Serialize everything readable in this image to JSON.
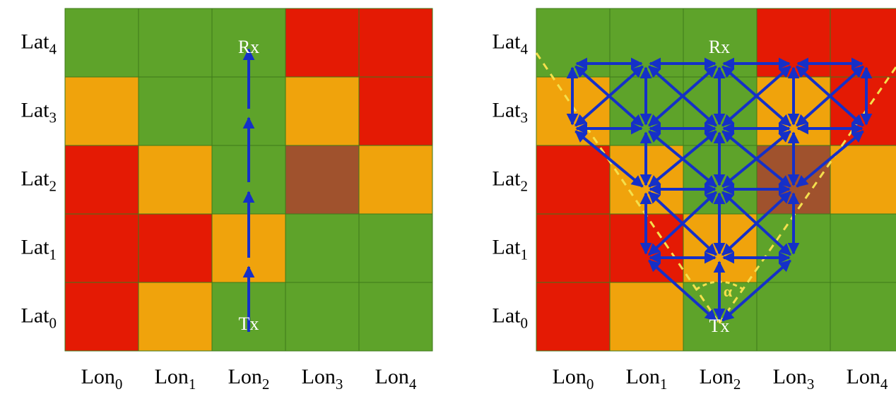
{
  "colors": {
    "G": "#5ea32a",
    "Y": "#f0a30c",
    "R": "#e41a04",
    "B": "#a0522d",
    "arrow": "#1530c8",
    "cone": "#f4e04d",
    "grid_line": "#3d7a1a"
  },
  "rows": [
    {
      "base": "Lat",
      "sub": "4"
    },
    {
      "base": "Lat",
      "sub": "3"
    },
    {
      "base": "Lat",
      "sub": "2"
    },
    {
      "base": "Lat",
      "sub": "1"
    },
    {
      "base": "Lat",
      "sub": "0"
    }
  ],
  "cols": [
    {
      "base": "Lon",
      "sub": "0"
    },
    {
      "base": "Lon",
      "sub": "1"
    },
    {
      "base": "Lon",
      "sub": "2"
    },
    {
      "base": "Lon",
      "sub": "3"
    },
    {
      "base": "Lon",
      "sub": "4"
    }
  ],
  "grid": [
    [
      "G",
      "G",
      "G",
      "R",
      "R"
    ],
    [
      "Y",
      "G",
      "G",
      "Y",
      "R"
    ],
    [
      "R",
      "Y",
      "G",
      "B",
      "Y"
    ],
    [
      "R",
      "R",
      "Y",
      "G",
      "G"
    ],
    [
      "R",
      "Y",
      "G",
      "G",
      "G"
    ]
  ],
  "left_panel": {
    "rx_label": "Rx",
    "tx_label": "Tx",
    "path": "Lon2 from Lat0 to Lat4"
  },
  "right_panel": {
    "rx_label": "Rx",
    "tx_label": "Tx",
    "cone_label": "α"
  }
}
